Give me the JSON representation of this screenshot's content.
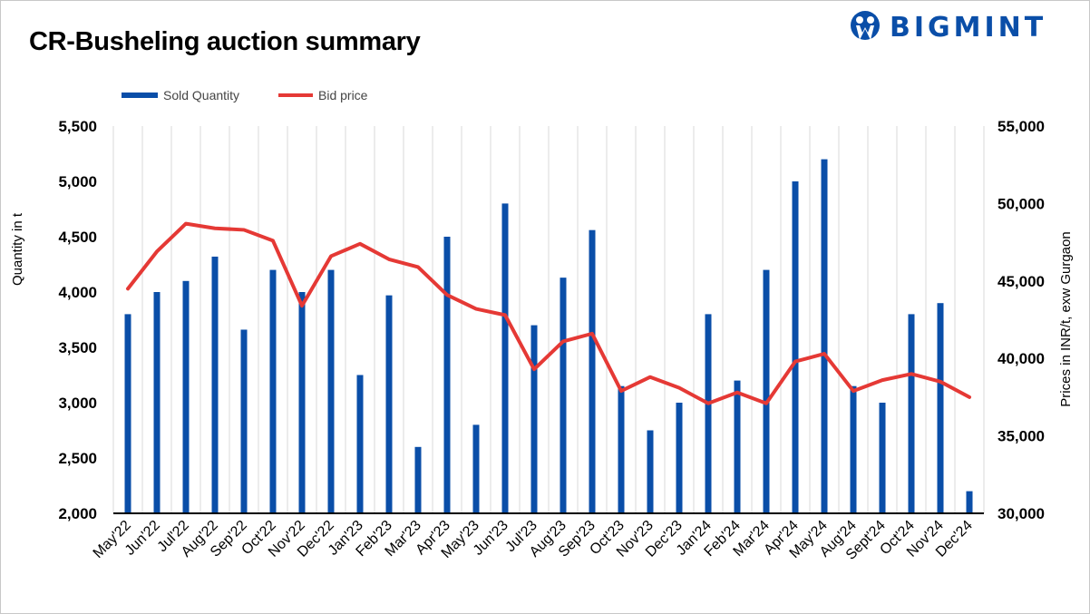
{
  "title": "CR-Busheling auction summary",
  "logo": {
    "text": "BIGMINT",
    "color": "#0a4ea8"
  },
  "chart_data": {
    "type": "bar+line",
    "title": "CR-Busheling auction summary",
    "categories": [
      "May'22",
      "Jun'22",
      "Jul'22",
      "Aug'22",
      "Sep'22",
      "Oct'22",
      "Nov'22",
      "Dec'22",
      "Jan'23",
      "Feb'23",
      "Mar'23",
      "Apr'23",
      "May'23",
      "Jun'23",
      "Jul'23",
      "Aug'23",
      "Sep'23",
      "Oct'23",
      "Nov'23",
      "Dec'23",
      "Jan'24",
      "Feb'24",
      "Mar'24",
      "Apr'24",
      "May'24",
      "Aug'24",
      "Sept'24",
      "Oct'24",
      "Nov'24",
      "Dec'24"
    ],
    "series": [
      {
        "name": "Sold Quantity",
        "type": "bar",
        "axis": "left",
        "color": "#0a4ea8",
        "values": [
          3800,
          4000,
          4100,
          4320,
          3660,
          4200,
          4000,
          4200,
          3250,
          3970,
          2600,
          4500,
          2800,
          4800,
          3700,
          4130,
          4560,
          3150,
          2750,
          3000,
          3800,
          3200,
          4200,
          5000,
          5200,
          3150,
          3000,
          3800,
          3900,
          2200
        ]
      },
      {
        "name": "Bid price",
        "type": "line",
        "axis": "right",
        "color": "#e53935",
        "values": [
          44500,
          46900,
          48700,
          48400,
          48300,
          47600,
          43400,
          46600,
          47400,
          46400,
          45900,
          44100,
          43200,
          42800,
          39300,
          41100,
          41600,
          37900,
          38800,
          38100,
          37100,
          37800,
          37100,
          39800,
          40300,
          37900,
          38600,
          39000,
          38500,
          37500
        ]
      }
    ],
    "ylabel": "Quantity in t",
    "y2label": "Prices in INR/t, exw Gurgaon",
    "ylim": [
      2000,
      5500
    ],
    "y2lim": [
      30000,
      55000
    ],
    "yticks": [
      "2,000",
      "2,500",
      "3,000",
      "3,500",
      "4,000",
      "4,500",
      "5,000",
      "5,500"
    ],
    "y2ticks": [
      "30,000",
      "35,000",
      "40,000",
      "45,000",
      "50,000",
      "55,000"
    ],
    "grid": "vertical",
    "legend": "top-left"
  }
}
